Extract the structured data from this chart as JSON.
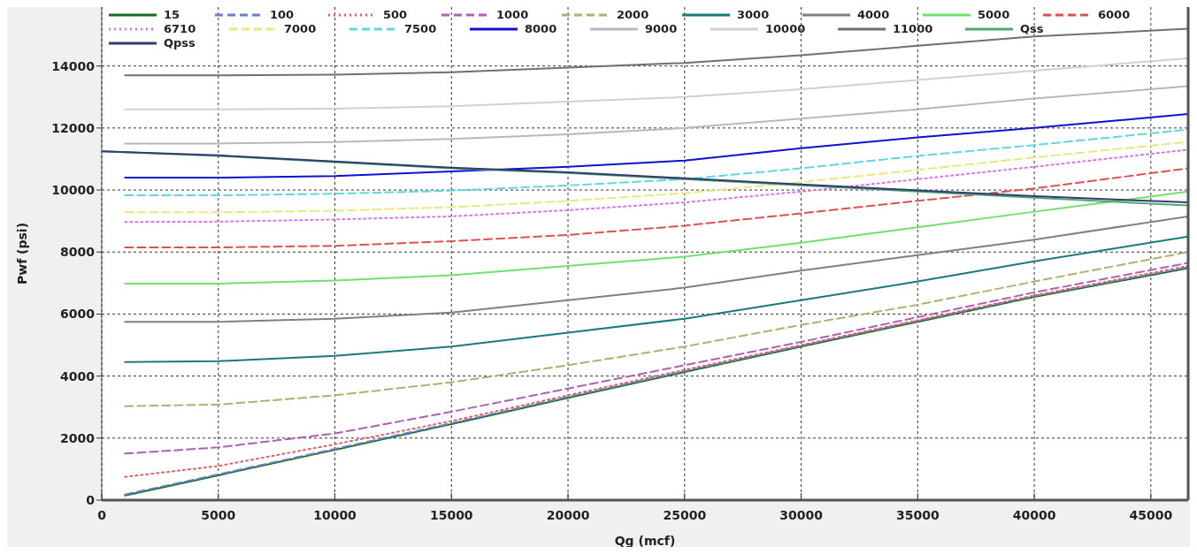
{
  "chart_data": {
    "type": "line",
    "xlabel": "Qg (mcf)",
    "ylabel": "Pwf (psi)",
    "x": [
      1000,
      5000,
      10000,
      15000,
      20000,
      25000,
      30000,
      35000,
      40000,
      46600
    ],
    "xlim": [
      0,
      46600
    ],
    "ylim": [
      0,
      15900
    ],
    "xticks": [
      0,
      5000,
      10000,
      15000,
      20000,
      25000,
      30000,
      35000,
      40000,
      45000
    ],
    "yticks": [
      0,
      2000,
      4000,
      6000,
      8000,
      10000,
      12000,
      14000
    ],
    "grid": true,
    "legend": "top",
    "marker": "none",
    "series": [
      {
        "name": "15",
        "color": "#1a6b1a",
        "line_style": "solid",
        "values": [
          150,
          800,
          1620,
          2450,
          3300,
          4130,
          4950,
          5750,
          6550,
          7480
        ]
      },
      {
        "name": "100",
        "color": "#6a7fd0",
        "line_style": "dashed",
        "values": [
          180,
          830,
          1650,
          2480,
          3330,
          4160,
          4980,
          5780,
          6580,
          7510
        ]
      },
      {
        "name": "500",
        "color": "#e06060",
        "line_style": "dotted",
        "values": [
          750,
          1100,
          1800,
          2550,
          3380,
          4200,
          5000,
          5800,
          6600,
          7550
        ]
      },
      {
        "name": "1000",
        "color": "#b060b0",
        "line_style": "dashed",
        "values": [
          1500,
          1700,
          2150,
          2850,
          3600,
          4350,
          5100,
          5900,
          6700,
          7650
        ]
      },
      {
        "name": "2000",
        "color": "#b0b070",
        "line_style": "dashed",
        "values": [
          3030,
          3080,
          3380,
          3800,
          4350,
          4950,
          5650,
          6300,
          7050,
          8000
        ]
      },
      {
        "name": "3000",
        "color": "#1a7a7a",
        "line_style": "solid",
        "values": [
          4450,
          4480,
          4650,
          4950,
          5400,
          5850,
          6450,
          7050,
          7700,
          8500
        ]
      },
      {
        "name": "4000",
        "color": "#808080",
        "line_style": "solid",
        "values": [
          5750,
          5750,
          5850,
          6050,
          6450,
          6850,
          7400,
          7900,
          8400,
          9150
        ]
      },
      {
        "name": "5000",
        "color": "#70e070",
        "line_style": "solid",
        "values": [
          6980,
          6980,
          7080,
          7250,
          7550,
          7850,
          8300,
          8800,
          9300,
          9950
        ]
      },
      {
        "name": "6000",
        "color": "#e05050",
        "line_style": "dashed",
        "values": [
          8150,
          8150,
          8200,
          8350,
          8550,
          8850,
          9250,
          9650,
          10050,
          10700
        ]
      },
      {
        "name": "6710",
        "color": "#e070e0",
        "line_style": "dotted",
        "values": [
          8970,
          8980,
          9050,
          9150,
          9350,
          9600,
          9950,
          10350,
          10750,
          11300
        ]
      },
      {
        "name": "7000",
        "color": "#e8e880",
        "line_style": "dashed",
        "values": [
          9280,
          9280,
          9330,
          9450,
          9650,
          9900,
          10250,
          10650,
          11050,
          11550
        ]
      },
      {
        "name": "7500",
        "color": "#60d8d8",
        "line_style": "dashed",
        "values": [
          9830,
          9830,
          9880,
          9980,
          10150,
          10350,
          10700,
          11100,
          11450,
          11950
        ]
      },
      {
        "name": "8000",
        "color": "#1010d0",
        "line_style": "solid",
        "values": [
          10400,
          10400,
          10450,
          10600,
          10750,
          10950,
          11350,
          11700,
          12000,
          12450
        ]
      },
      {
        "name": "9000",
        "color": "#b8b8b8",
        "line_style": "solid",
        "values": [
          11500,
          11500,
          11550,
          11650,
          11800,
          12000,
          12300,
          12600,
          12950,
          13350
        ]
      },
      {
        "name": "10000",
        "color": "#d0d0d0",
        "line_style": "solid",
        "values": [
          12600,
          12600,
          12620,
          12700,
          12850,
          13000,
          13250,
          13550,
          13850,
          14250
        ]
      },
      {
        "name": "11000",
        "color": "#707070",
        "line_style": "solid",
        "values": [
          13700,
          13700,
          13720,
          13800,
          13950,
          14100,
          14350,
          14650,
          14950,
          15200
        ]
      },
      {
        "name": "Qss",
        "color": "#4fa870",
        "line_style": "solid",
        "x": [
          0,
          5000,
          10000,
          15000,
          20000,
          25000,
          30000,
          35000,
          40000,
          46600
        ],
        "values": [
          11250,
          11100,
          10900,
          10700,
          10550,
          10350,
          10150,
          9950,
          9750,
          9500
        ]
      },
      {
        "name": "Qpss",
        "color": "#303c70",
        "line_style": "solid",
        "x": [
          0,
          5000,
          10000,
          15000,
          20000,
          25000,
          30000,
          35000,
          40000,
          46600
        ],
        "values": [
          11250,
          11120,
          10920,
          10720,
          10570,
          10380,
          10180,
          9990,
          9800,
          9600
        ]
      }
    ]
  }
}
